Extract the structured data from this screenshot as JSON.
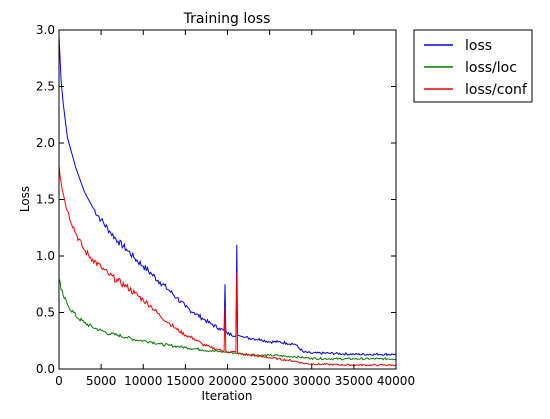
{
  "chart_data": {
    "type": "line",
    "title": "Training loss",
    "xlabel": "Iteration",
    "ylabel": "Loss",
    "xlim": [
      0,
      40000
    ],
    "ylim": [
      0.0,
      3.0
    ],
    "xticks": [
      "0",
      "5000",
      "10000",
      "15000",
      "20000",
      "25000",
      "30000",
      "35000",
      "40000"
    ],
    "yticks": [
      "0.0",
      "0.5",
      "1.0",
      "1.5",
      "2.0",
      "2.5",
      "3.0"
    ],
    "grid": false,
    "legend_position": "outside-right-top",
    "x": [
      0,
      250,
      500,
      1000,
      2000,
      3000,
      4000,
      5000,
      6000,
      7000,
      8000,
      9000,
      10000,
      11000,
      12000,
      13000,
      14000,
      15000,
      16000,
      17000,
      18000,
      19000,
      19600,
      19700,
      19800,
      20000,
      21000,
      21100,
      21200,
      22000,
      23000,
      24000,
      25000,
      26000,
      27000,
      28000,
      29000,
      30000,
      32000,
      35000,
      38000,
      40000
    ],
    "series": [
      {
        "name": "loss",
        "color": "#0000ff",
        "values": [
          2.95,
          2.55,
          2.35,
          2.05,
          1.78,
          1.57,
          1.43,
          1.32,
          1.22,
          1.13,
          1.06,
          0.98,
          0.91,
          0.84,
          0.77,
          0.7,
          0.63,
          0.55,
          0.5,
          0.45,
          0.4,
          0.36,
          0.34,
          0.75,
          0.34,
          0.31,
          0.3,
          1.1,
          0.3,
          0.28,
          0.27,
          0.26,
          0.24,
          0.24,
          0.23,
          0.22,
          0.15,
          0.14,
          0.14,
          0.13,
          0.13,
          0.13
        ]
      },
      {
        "name": "loss/loc",
        "color": "#008000",
        "values": [
          0.8,
          0.7,
          0.65,
          0.57,
          0.47,
          0.41,
          0.37,
          0.34,
          0.31,
          0.3,
          0.28,
          0.26,
          0.25,
          0.24,
          0.22,
          0.21,
          0.2,
          0.19,
          0.18,
          0.17,
          0.16,
          0.155,
          0.15,
          0.15,
          0.15,
          0.15,
          0.14,
          0.14,
          0.14,
          0.13,
          0.13,
          0.12,
          0.12,
          0.12,
          0.11,
          0.11,
          0.1,
          0.095,
          0.09,
          0.09,
          0.09,
          0.09
        ]
      },
      {
        "name": "loss/conf",
        "color": "#ff0000",
        "values": [
          1.8,
          1.65,
          1.55,
          1.4,
          1.2,
          1.05,
          0.97,
          0.9,
          0.83,
          0.78,
          0.73,
          0.67,
          0.61,
          0.55,
          0.47,
          0.41,
          0.35,
          0.3,
          0.27,
          0.22,
          0.19,
          0.17,
          0.16,
          0.55,
          0.16,
          0.15,
          0.15,
          0.85,
          0.14,
          0.13,
          0.12,
          0.11,
          0.1,
          0.09,
          0.08,
          0.07,
          0.05,
          0.045,
          0.04,
          0.035,
          0.035,
          0.035
        ]
      }
    ]
  }
}
